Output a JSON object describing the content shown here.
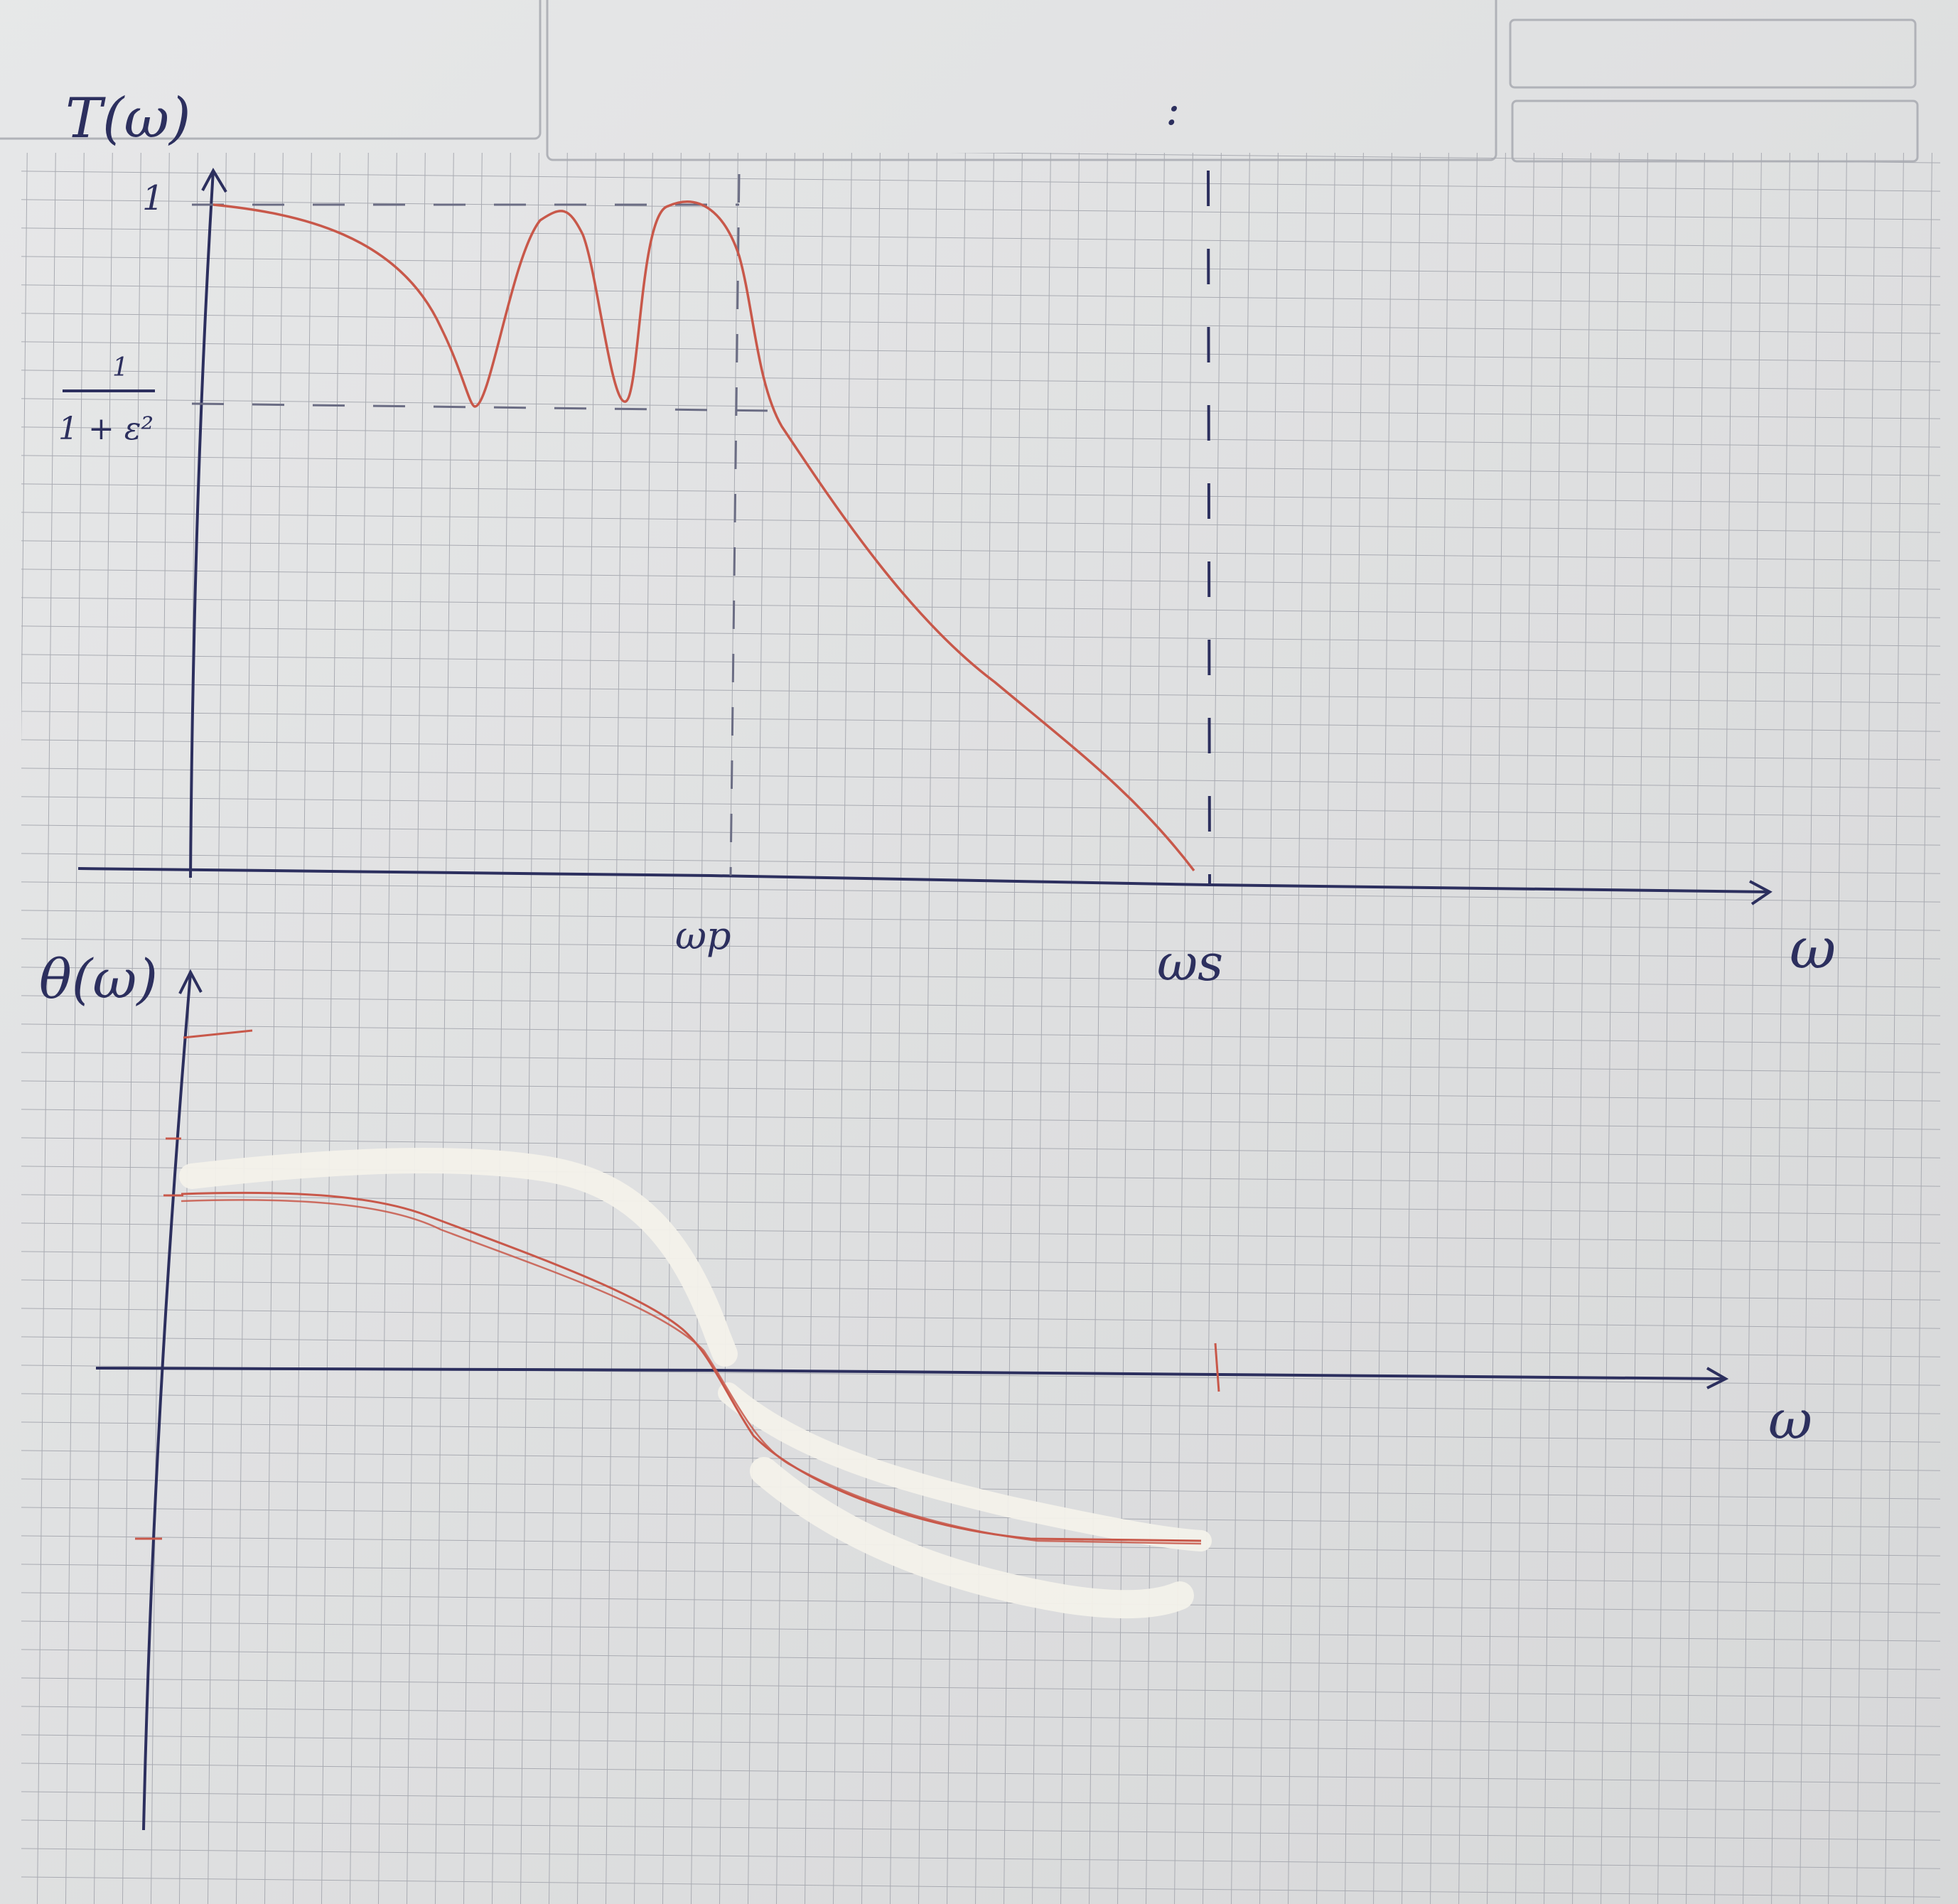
{
  "top_plot": {
    "y_axis_label": "T(ω)",
    "y_tick_one": "1",
    "y_tick_ripple_num": "1",
    "y_tick_ripple_den": "1 + ε²",
    "x_axis_label": "ω",
    "x_mark_passband": "ωp",
    "x_mark_stopband": "ωs"
  },
  "bottom_plot": {
    "y_axis_label": "θ(ω)",
    "x_axis_label": "ω"
  },
  "header_mark": ":",
  "colors": {
    "paper": "#e4e5e6",
    "grid": "#a9abb2",
    "ink_blue": "#2c2f5e",
    "ink_red": "#c8584a",
    "whiteout": "#f3f1ea"
  }
}
